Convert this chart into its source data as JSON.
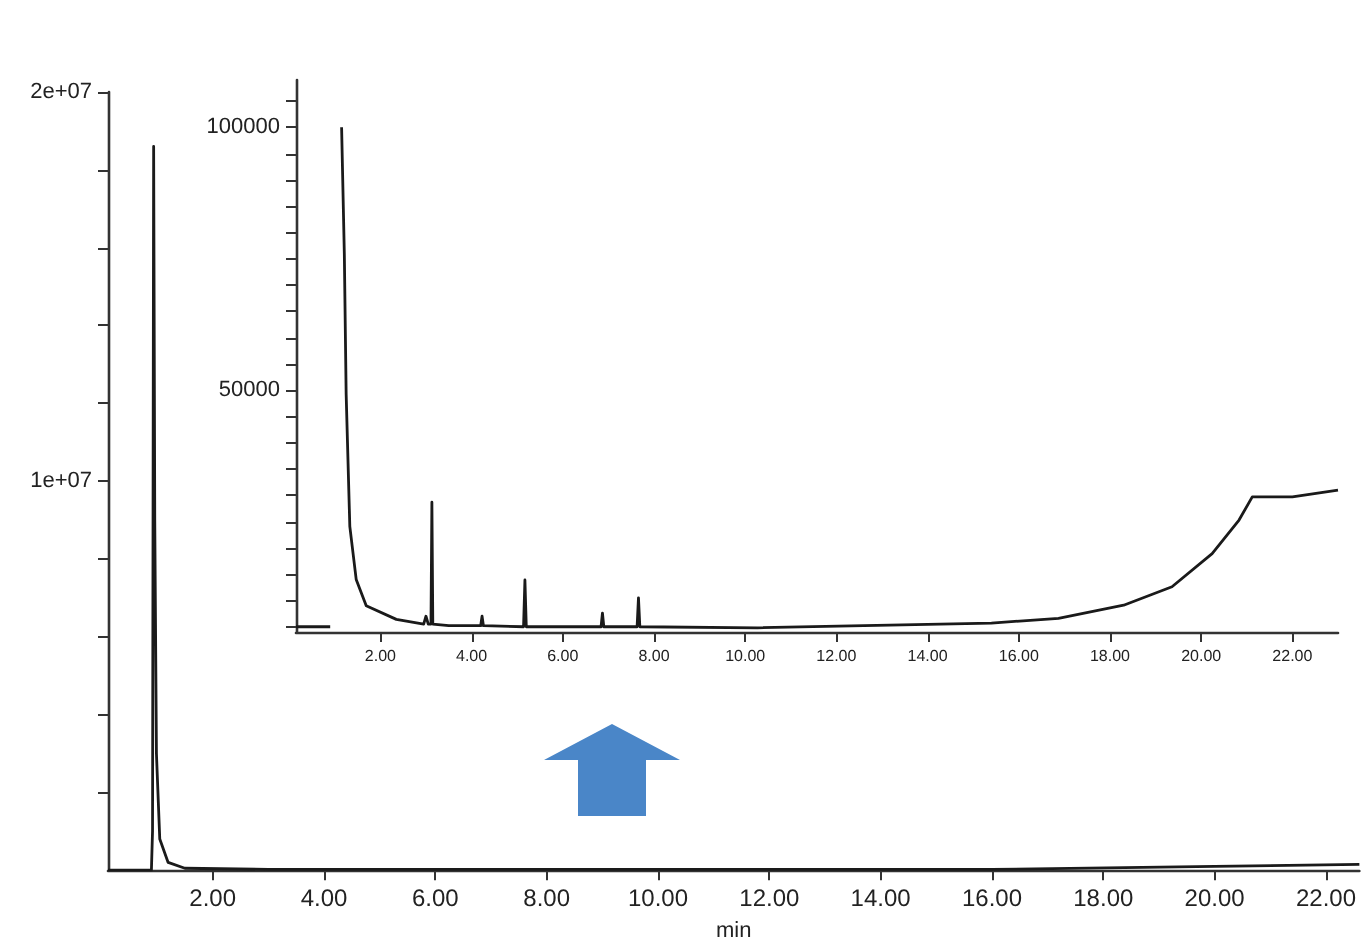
{
  "chart_data": [
    {
      "type": "line",
      "xlabel": "min",
      "marker": "none",
      "grid": false,
      "series": [
        {
          "color": "#1a1a1a",
          "x": [
            0.12,
            0.9,
            0.92,
            0.94,
            0.96,
            0.99,
            1.05,
            1.2,
            1.5,
            3,
            16,
            20,
            22.6
          ],
          "values": [
            0,
            0,
            1000000,
            18600000,
            9000000,
            3000000,
            800000,
            200000,
            50000,
            20000,
            20000,
            100000,
            150000
          ]
        }
      ],
      "xlim": [
        0.12,
        22.6
      ],
      "xticks": [
        {
          "value": 2,
          "label": "2.00"
        },
        {
          "value": 4,
          "label": "4.00"
        },
        {
          "value": 6,
          "label": "6.00"
        },
        {
          "value": 8,
          "label": "8.00"
        },
        {
          "value": 10,
          "label": "10.00"
        },
        {
          "value": 12,
          "label": "12.00"
        },
        {
          "value": 14,
          "label": "14.00"
        },
        {
          "value": 16,
          "label": "16.00"
        },
        {
          "value": 18,
          "label": "18.00"
        },
        {
          "value": 20,
          "label": "20.00"
        },
        {
          "value": 22,
          "label": "22.00"
        }
      ],
      "ylim": [
        0,
        20000000
      ],
      "yticks": [
        {
          "value": 2000000,
          "label": null
        },
        {
          "value": 4000000,
          "label": null
        },
        {
          "value": 6000000,
          "label": null
        },
        {
          "value": 8000000,
          "label": null
        },
        {
          "value": 10000000,
          "label": "1e+07"
        },
        {
          "value": 12000000,
          "label": null
        },
        {
          "value": 14000000,
          "label": null
        },
        {
          "value": 16000000,
          "label": null
        },
        {
          "value": 18000000,
          "label": null
        },
        {
          "value": 20000000,
          "label": "2e+07"
        }
      ]
    },
    {
      "type": "line",
      "marker": "none",
      "grid": false,
      "series": [
        {
          "color": "#1a1a1a",
          "x": [
            0.15,
            0.9,
            0.95,
            1.05,
            1.15,
            1.21,
            1.25,
            1.33,
            1.47,
            1.69,
            2.35,
            2.95,
            3.0,
            3.05,
            3.11,
            3.13,
            3.15,
            3.5,
            4.2,
            4.23,
            4.26,
            5.14,
            5.17,
            5.2,
            6.84,
            6.87,
            6.9,
            7.63,
            7.66,
            7.69,
            10.27,
            15.4,
            16.87,
            18.3,
            19.36,
            20.24,
            20.83,
            21.12,
            22.0,
            23.0
          ],
          "values": [
            5000,
            5000,
            null,
            null,
            100000,
            75800,
            49200,
            24100,
            14000,
            9000,
            6400,
            5500,
            7000,
            5500,
            5500,
            28700,
            5500,
            5200,
            5200,
            7000,
            5200,
            5000,
            13900,
            5000,
            5000,
            7600,
            5000,
            5000,
            10500,
            5000,
            4800,
            5700,
            6600,
            9100,
            12600,
            18900,
            25300,
            29700,
            29700,
            31000
          ]
        }
      ],
      "xlim": [
        0.15,
        23.0
      ],
      "xticks": [
        {
          "value": 2,
          "label": "2.00"
        },
        {
          "value": 4,
          "label": "4.00"
        },
        {
          "value": 6,
          "label": "6.00"
        },
        {
          "value": 8,
          "label": "8.00"
        },
        {
          "value": 10,
          "label": "10.00"
        },
        {
          "value": 12,
          "label": "12.00"
        },
        {
          "value": 14,
          "label": "14.00"
        },
        {
          "value": 16,
          "label": "16.00"
        },
        {
          "value": 18,
          "label": "18.00"
        },
        {
          "value": 20,
          "label": "20.00"
        },
        {
          "value": 22,
          "label": "22.00"
        }
      ],
      "ylim": [
        4000,
        109000
      ],
      "yticks": [
        {
          "value": 5000,
          "label": null
        },
        {
          "value": 10000,
          "label": null
        },
        {
          "value": 15000,
          "label": null
        },
        {
          "value": 20000,
          "label": null
        },
        {
          "value": 25000,
          "label": null
        },
        {
          "value": 30000,
          "label": null
        },
        {
          "value": 35000,
          "label": null
        },
        {
          "value": 40000,
          "label": null
        },
        {
          "value": 45000,
          "label": null
        },
        {
          "value": 50000,
          "label": "50000"
        },
        {
          "value": 55000,
          "label": null
        },
        {
          "value": 60000,
          "label": null
        },
        {
          "value": 65000,
          "label": null
        },
        {
          "value": 70000,
          "label": null
        },
        {
          "value": 75000,
          "label": null
        },
        {
          "value": 80000,
          "label": null
        },
        {
          "value": 85000,
          "label": null
        },
        {
          "value": 90000,
          "label": null
        },
        {
          "value": 95000,
          "label": null
        },
        {
          "value": 100000,
          "label": "100000"
        },
        {
          "value": 105000,
          "label": null
        }
      ]
    }
  ]
}
